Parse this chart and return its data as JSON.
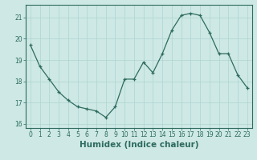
{
  "xlabel": "Humidex (Indice chaleur)",
  "x": [
    0,
    1,
    2,
    3,
    4,
    5,
    6,
    7,
    8,
    9,
    10,
    11,
    12,
    13,
    14,
    15,
    16,
    17,
    18,
    19,
    20,
    21,
    22,
    23
  ],
  "y": [
    19.7,
    18.7,
    18.1,
    17.5,
    17.1,
    16.8,
    16.7,
    16.6,
    16.3,
    16.8,
    18.1,
    18.1,
    18.9,
    18.4,
    19.3,
    20.4,
    21.1,
    21.2,
    21.1,
    20.3,
    19.3,
    19.3,
    18.3,
    17.7
  ],
  "ylim": [
    15.8,
    21.6
  ],
  "xlim": [
    -0.5,
    23.5
  ],
  "yticks": [
    16,
    17,
    18,
    19,
    20,
    21
  ],
  "xticks": [
    0,
    1,
    2,
    3,
    4,
    5,
    6,
    7,
    8,
    9,
    10,
    11,
    12,
    13,
    14,
    15,
    16,
    17,
    18,
    19,
    20,
    21,
    22,
    23
  ],
  "line_color": "#2e6b5e",
  "marker": "+",
  "bg_color": "#cde8e5",
  "grid_color": "#aed4d0",
  "axis_color": "#2e6b5e",
  "tick_color": "#2e6b5e",
  "label_color": "#2e6b5e",
  "font_size_ticks": 5.5,
  "font_size_label": 7.5
}
